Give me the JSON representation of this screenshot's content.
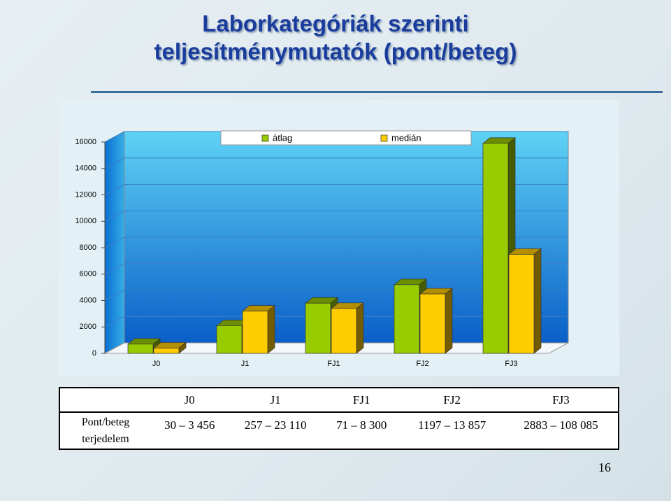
{
  "slide": {
    "title": [
      "Laborkategóriák szerinti",
      "teljesítménymutatók (pont/beteg)"
    ],
    "page_number": "16"
  },
  "chart_data": {
    "type": "bar3d",
    "categories": [
      "J0",
      "J1",
      "FJ1",
      "FJ2",
      "FJ3"
    ],
    "series": [
      {
        "name": "átlag",
        "color": "#99cc00",
        "values": [
          700,
          2100,
          3800,
          5200,
          15900
        ]
      },
      {
        "name": "medián",
        "color": "#ffcc00",
        "values": [
          400,
          3200,
          3400,
          4500,
          7500
        ]
      }
    ],
    "ylim": [
      0,
      16000
    ],
    "yticks": [
      0,
      2000,
      4000,
      6000,
      8000,
      10000,
      12000,
      14000,
      16000
    ],
    "grid": true,
    "legend": "top"
  },
  "table": {
    "header": [
      "J0",
      "J1",
      "FJ1",
      "FJ2",
      "FJ3"
    ],
    "rows": [
      {
        "label": "Pont/beteg terjedelem",
        "cells": [
          "30 – 3 456",
          "257 – 23 110",
          "71 – 8 300",
          "1197 – 13 857",
          "2883 – 108 085"
        ]
      }
    ]
  }
}
